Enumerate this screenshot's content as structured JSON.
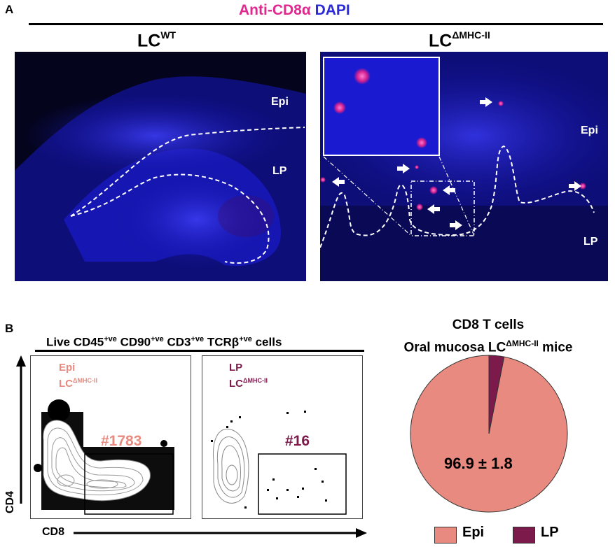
{
  "panel_a": {
    "letter": "A",
    "title_stain_1": "Anti-CD8α",
    "title_stain_2": "DAPI",
    "left_label_base": "LC",
    "left_label_sup": "WT",
    "right_label_base": "LC",
    "right_label_sup": "ΔMHC-II",
    "left_epi": "Epi",
    "left_lp": "LP",
    "right_epi": "Epi",
    "right_lp": "LP",
    "colors": {
      "anti_cd8": "#e0288f",
      "dapi": "#2a2ad8",
      "background": "#04041c"
    }
  },
  "panel_b": {
    "letter": "B",
    "gate_title_parts": {
      "p1": "Live CD45",
      "s1": "+ve",
      "p2": " CD90",
      "s2": "+ve",
      "p3": " CD3",
      "s3": "+ve",
      "p4": " TCRβ",
      "s4": "+ve",
      "p5": " cells"
    },
    "plot_epi": {
      "name": "Epi",
      "sub_base": "LC",
      "sub_sup": "ΔMHC-II",
      "count": "#1783",
      "color": "#e88a80"
    },
    "plot_lp": {
      "name": "LP",
      "sub_base": "LC",
      "sub_sup": "ΔMHC-II",
      "count": "#16",
      "color": "#7b1a4b"
    },
    "y_axis": "CD4",
    "x_axis": "CD8"
  },
  "pie": {
    "title_line1": "CD8 T cells",
    "title_line2_base": "Oral mucosa LC",
    "title_line2_sup": "ΔMHC-II",
    "title_line2_end": " mice",
    "value_label": "96.9 ± 1.8",
    "legend": [
      {
        "label": "Epi",
        "color": "#e88a80"
      },
      {
        "label": "LP",
        "color": "#7b1a4b"
      }
    ]
  },
  "chart_data": {
    "type": "pie",
    "categories": [
      "Epi",
      "LP"
    ],
    "values": [
      96.9,
      3.1
    ],
    "colors": [
      "#e88a80",
      "#7b1a4b"
    ],
    "title": "CD8 T cells Oral mucosa LCΔMHC-II mice",
    "annotation": "96.9 ± 1.8",
    "legend_position": "bottom"
  }
}
